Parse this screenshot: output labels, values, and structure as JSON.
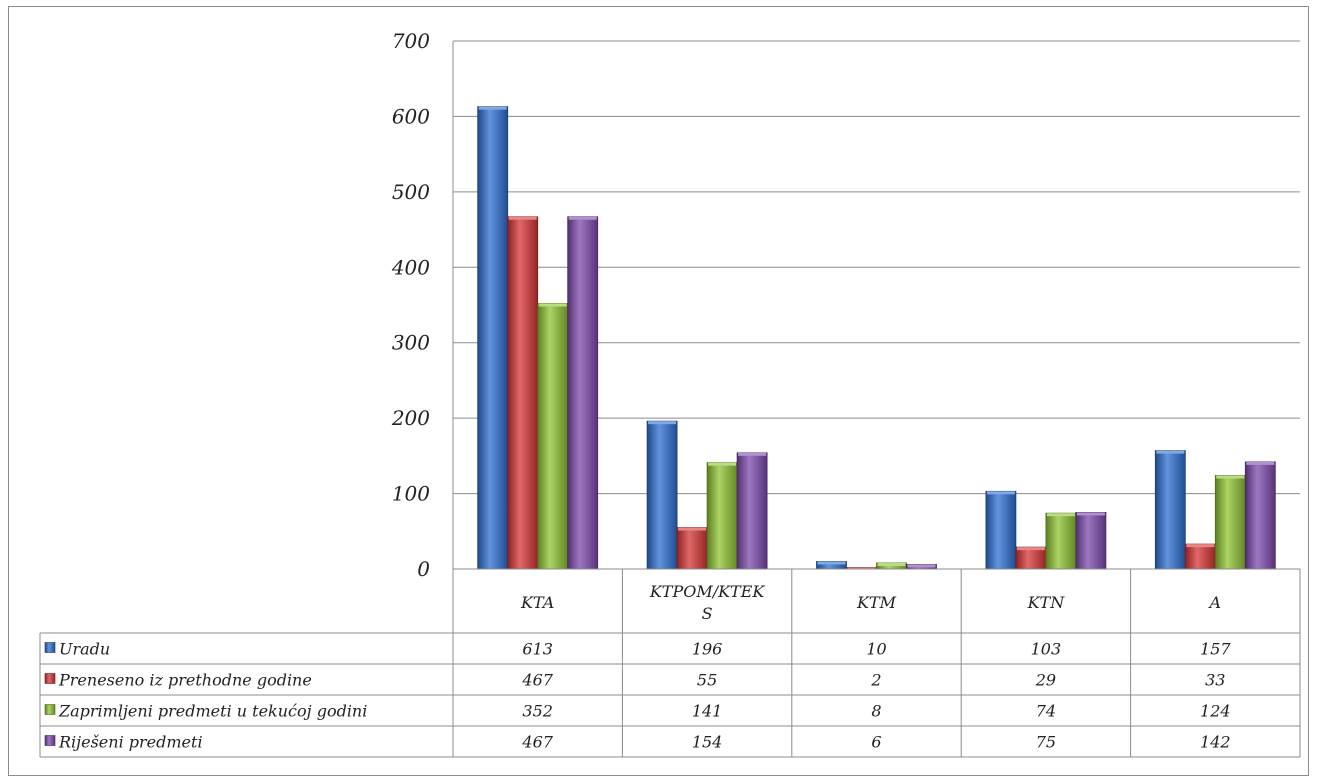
{
  "chart_data": {
    "type": "bar",
    "categories": [
      "KTA",
      "KTPOM/KTEKS",
      "KTM",
      "KTN",
      "A"
    ],
    "category_labels": [
      [
        "KTA"
      ],
      [
        "KTPOM/KTEK",
        "S"
      ],
      [
        "KTM"
      ],
      [
        "KTN"
      ],
      [
        "A"
      ]
    ],
    "series": [
      {
        "name": "Uradu",
        "values": [
          613,
          196,
          10,
          103,
          157
        ],
        "color": "#2e6fd3"
      },
      {
        "name": "Preneseno iz prethodne godine",
        "values": [
          467,
          55,
          2,
          29,
          33
        ],
        "color": "#d73535"
      },
      {
        "name": "Zaprimljeni predmeti u tekućoj godini",
        "values": [
          352,
          141,
          8,
          74,
          124
        ],
        "color": "#8fc431"
      },
      {
        "name": "Riješeni predmeti",
        "values": [
          467,
          154,
          6,
          75,
          142
        ],
        "color": "#7d49ad"
      }
    ],
    "ylim": [
      0,
      700
    ],
    "yticks": [
      0,
      100,
      200,
      300,
      400,
      500,
      600,
      700
    ],
    "grid": true,
    "legend": "data-table",
    "title": "",
    "xlabel": "",
    "ylabel": ""
  }
}
